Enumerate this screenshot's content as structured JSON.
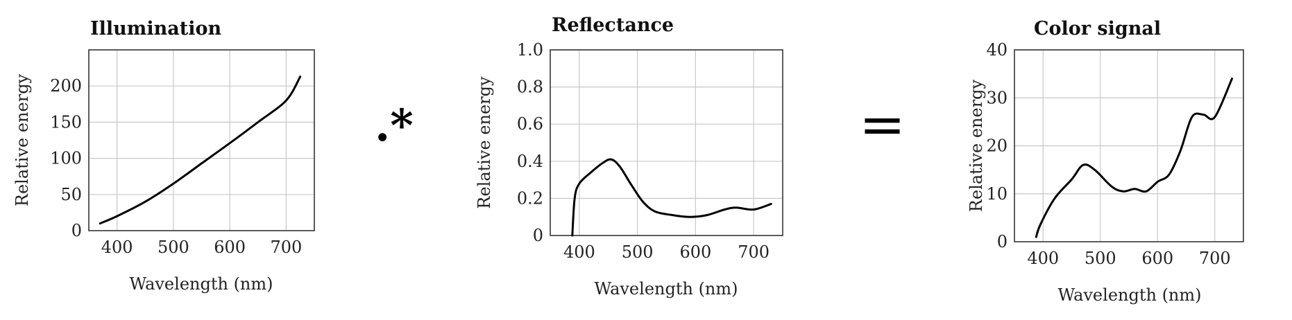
{
  "chart_data": [
    {
      "type": "line",
      "title": "Illumination",
      "xlabel": "Wavelength (nm)",
      "ylabel": "Relative energy",
      "xlim": [
        350,
        750
      ],
      "ylim": [
        0,
        250
      ],
      "xticks": [
        400,
        500,
        600,
        700
      ],
      "yticks": [
        0,
        50,
        100,
        150,
        200
      ],
      "x": [
        370,
        400,
        450,
        500,
        550,
        600,
        650,
        700,
        725
      ],
      "y": [
        10,
        20,
        40,
        65,
        93,
        121,
        150,
        180,
        213
      ]
    },
    {
      "type": "line",
      "title": "Reflectance",
      "xlabel": "Wavelength (nm)",
      "ylabel": "Relative energy",
      "xlim": [
        350,
        750
      ],
      "ylim": [
        0,
        1.0
      ],
      "xticks": [
        400,
        500,
        600,
        700
      ],
      "yticks": [
        0,
        0.2,
        0.4,
        0.6,
        0.8,
        1.0
      ],
      "ytick_labels": [
        "0",
        "0.2",
        "0.4",
        "0.6",
        "0.8",
        "1.0"
      ],
      "x": [
        388,
        392,
        400,
        420,
        440,
        455,
        470,
        490,
        510,
        530,
        560,
        590,
        620,
        650,
        670,
        700,
        730
      ],
      "y": [
        0,
        0.2,
        0.28,
        0.34,
        0.39,
        0.41,
        0.37,
        0.27,
        0.18,
        0.13,
        0.11,
        0.1,
        0.11,
        0.14,
        0.15,
        0.14,
        0.17
      ]
    },
    {
      "type": "line",
      "title": "Color signal",
      "xlabel": "Wavelength (nm)",
      "ylabel": "Relative energy",
      "xlim": [
        350,
        750
      ],
      "ylim": [
        0,
        40
      ],
      "xticks": [
        400,
        500,
        600,
        700
      ],
      "yticks": [
        0,
        10,
        20,
        30,
        40
      ],
      "x": [
        388,
        395,
        420,
        450,
        470,
        490,
        520,
        540,
        560,
        580,
        600,
        620,
        640,
        660,
        680,
        700,
        730
      ],
      "y": [
        1,
        3.5,
        9,
        13,
        16,
        15,
        11.5,
        10.5,
        11,
        10.5,
        12.5,
        14,
        19,
        26,
        26.5,
        26,
        34
      ]
    }
  ],
  "operators": {
    "multiply": ".*",
    "equals": "="
  }
}
